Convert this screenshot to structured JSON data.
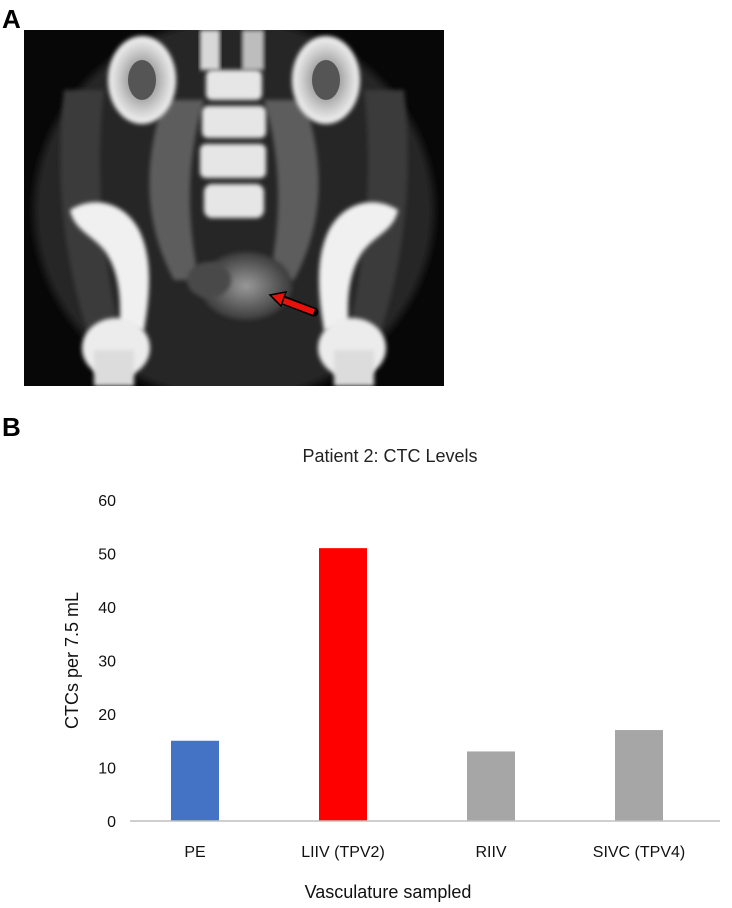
{
  "panels": {
    "a_label": "A",
    "b_label": "B"
  },
  "ct_image": {
    "arrow_color": "#e8120c"
  },
  "chart_data": {
    "type": "bar",
    "title": "Patient 2: CTC Levels",
    "xlabel": "Vasculature sampled",
    "ylabel": "CTCs per 7.5 mL",
    "categories": [
      "PE",
      "LIIV (TPV2)",
      "RIIV",
      "SIVC (TPV4)"
    ],
    "values": [
      15,
      51,
      13,
      17
    ],
    "colors": [
      "#4472c4",
      "#ff0000",
      "#a6a6a6",
      "#a6a6a6"
    ],
    "ylim": [
      0,
      60
    ],
    "yticks": [
      0,
      10,
      20,
      30,
      40,
      50,
      60
    ],
    "grid": false,
    "legend": "none"
  }
}
